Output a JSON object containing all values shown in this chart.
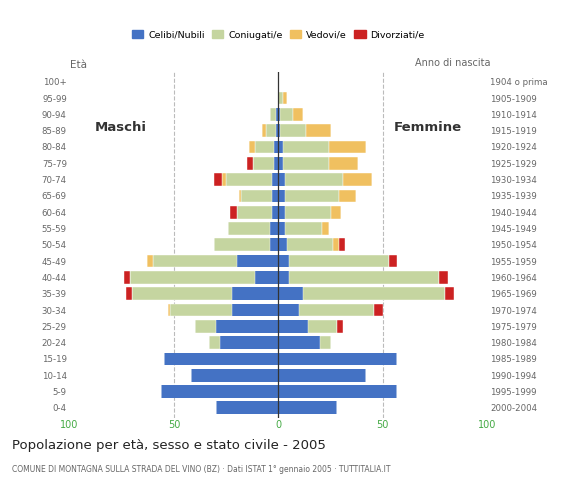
{
  "age_groups": [
    "0-4",
    "5-9",
    "10-14",
    "15-19",
    "20-24",
    "25-29",
    "30-34",
    "35-39",
    "40-44",
    "45-49",
    "50-54",
    "55-59",
    "60-64",
    "65-69",
    "70-74",
    "75-79",
    "80-84",
    "85-89",
    "90-94",
    "95-99",
    "100+"
  ],
  "birth_years": [
    "2000-2004",
    "1995-1999",
    "1990-1994",
    "1985-1989",
    "1980-1984",
    "1975-1979",
    "1970-1974",
    "1965-1969",
    "1960-1964",
    "1955-1959",
    "1950-1954",
    "1945-1949",
    "1940-1944",
    "1935-1939",
    "1930-1934",
    "1925-1929",
    "1920-1924",
    "1915-1919",
    "1910-1914",
    "1905-1909",
    "1904 o prima"
  ],
  "males": {
    "celibi": [
      30,
      56,
      42,
      55,
      28,
      30,
      22,
      22,
      11,
      20,
      4,
      4,
      3,
      3,
      3,
      2,
      2,
      1,
      1,
      0,
      0
    ],
    "coniugati": [
      0,
      0,
      0,
      0,
      5,
      10,
      30,
      48,
      60,
      40,
      27,
      20,
      17,
      15,
      22,
      10,
      9,
      5,
      3,
      0,
      0
    ],
    "vedovi": [
      0,
      0,
      0,
      0,
      0,
      0,
      1,
      0,
      0,
      3,
      0,
      0,
      0,
      1,
      2,
      0,
      3,
      2,
      0,
      0,
      0
    ],
    "divorziati": [
      0,
      0,
      0,
      0,
      0,
      0,
      0,
      3,
      3,
      0,
      0,
      0,
      3,
      0,
      4,
      3,
      0,
      0,
      0,
      0,
      0
    ]
  },
  "females": {
    "nubili": [
      28,
      57,
      42,
      57,
      20,
      14,
      10,
      12,
      5,
      5,
      4,
      3,
      3,
      3,
      3,
      2,
      2,
      1,
      1,
      0,
      0
    ],
    "coniugate": [
      0,
      0,
      0,
      0,
      5,
      14,
      36,
      68,
      72,
      48,
      22,
      18,
      22,
      26,
      28,
      22,
      22,
      12,
      6,
      2,
      0
    ],
    "vedove": [
      0,
      0,
      0,
      0,
      0,
      0,
      0,
      0,
      0,
      0,
      3,
      3,
      5,
      8,
      14,
      14,
      18,
      12,
      5,
      2,
      0
    ],
    "divorziate": [
      0,
      0,
      0,
      0,
      0,
      3,
      4,
      4,
      4,
      4,
      3,
      0,
      0,
      0,
      0,
      0,
      0,
      0,
      0,
      0,
      0
    ]
  },
  "colors": {
    "celibi": "#4472c4",
    "coniugati": "#c5d5a0",
    "vedovi": "#f0c060",
    "divorziati": "#cc2222"
  },
  "xlim": 100,
  "title": "Popolazione per età, sesso e stato civile - 2005",
  "subtitle": "COMUNE DI MONTAGNA SULLA STRADA DEL VINO (BZ) · Dati ISTAT 1° gennaio 2005 · TUTTITALIA.IT",
  "ylabel_left": "Età",
  "ylabel_right": "Anno di nascita",
  "label_maschi": "Maschi",
  "label_femmine": "Femmine",
  "legend_labels": [
    "Celibi/Nubili",
    "Coniugati/e",
    "Vedovi/e",
    "Divorziati/e"
  ],
  "grid_color": "#bbbbbb",
  "bg_color": "#ffffff",
  "text_color": "#666666",
  "title_color": "#222222",
  "axis_label_color": "#44aa44"
}
